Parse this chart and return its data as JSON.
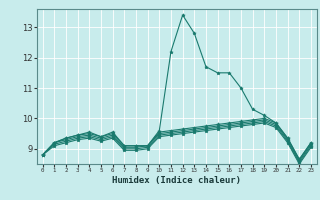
{
  "xlabel": "Humidex (Indice chaleur)",
  "ylabel": "",
  "bg_color": "#c8ecec",
  "grid_color": "#ffffff",
  "line_color": "#1a7a6e",
  "xlim": [
    -0.5,
    23.5
  ],
  "ylim": [
    8.5,
    13.6
  ],
  "yticks": [
    9,
    10,
    11,
    12,
    13
  ],
  "xtick_labels": [
    "0",
    "1",
    "2",
    "3",
    "4",
    "5",
    "6",
    "7",
    "8",
    "9",
    "10",
    "11",
    "12",
    "13",
    "14",
    "15",
    "16",
    "17",
    "18",
    "19",
    "20",
    "21",
    "22",
    "23"
  ],
  "lines": [
    [
      8.8,
      9.2,
      9.35,
      9.45,
      9.55,
      9.4,
      9.55,
      9.1,
      9.1,
      9.1,
      9.6,
      12.2,
      13.4,
      12.8,
      11.7,
      11.5,
      11.5,
      11.0,
      10.3,
      10.1,
      9.85,
      9.35,
      8.65,
      9.2
    ],
    [
      8.8,
      9.2,
      9.35,
      9.45,
      9.5,
      9.4,
      9.5,
      9.1,
      9.1,
      9.1,
      9.55,
      9.6,
      9.65,
      9.7,
      9.75,
      9.8,
      9.85,
      9.9,
      9.95,
      10.0,
      9.85,
      9.35,
      8.65,
      9.2
    ],
    [
      8.8,
      9.2,
      9.3,
      9.4,
      9.45,
      9.35,
      9.45,
      9.05,
      9.05,
      9.1,
      9.5,
      9.55,
      9.6,
      9.65,
      9.7,
      9.75,
      9.8,
      9.85,
      9.9,
      9.95,
      9.8,
      9.3,
      8.6,
      9.15
    ],
    [
      8.8,
      9.15,
      9.25,
      9.35,
      9.4,
      9.3,
      9.4,
      9.0,
      9.0,
      9.05,
      9.45,
      9.5,
      9.55,
      9.6,
      9.65,
      9.7,
      9.75,
      9.8,
      9.85,
      9.9,
      9.75,
      9.25,
      8.55,
      9.1
    ],
    [
      8.8,
      9.1,
      9.2,
      9.3,
      9.35,
      9.25,
      9.35,
      8.95,
      8.95,
      9.0,
      9.4,
      9.45,
      9.5,
      9.55,
      9.6,
      9.65,
      9.7,
      9.75,
      9.8,
      9.85,
      9.7,
      9.2,
      8.5,
      9.05
    ]
  ]
}
